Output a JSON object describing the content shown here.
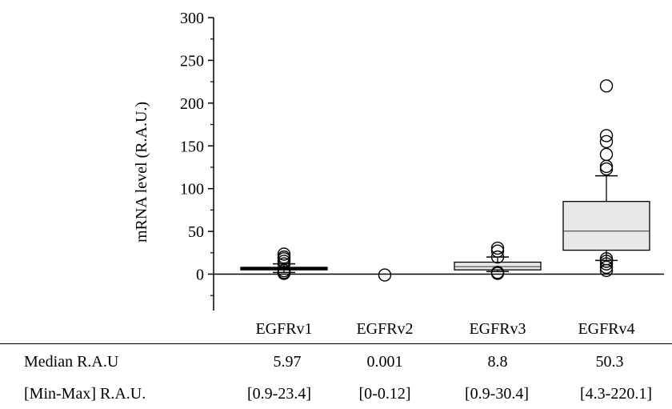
{
  "chart_data": {
    "type": "box",
    "ylabel": "mRNA level (R.A.U.)",
    "ylim": [
      -45,
      300
    ],
    "yticks": [
      0,
      50,
      100,
      150,
      200,
      250,
      300
    ],
    "categories": [
      "EGFRv1",
      "EGFRv2",
      "EGFRv3",
      "EGFRv4"
    ],
    "boxes": [
      {
        "name": "EGFRv1",
        "q1": 5,
        "median": 6,
        "q3": 8,
        "whisker_low": 2,
        "whisker_high": 12,
        "outliers": [
          0.9,
          2,
          4,
          12,
          15,
          18,
          20,
          23.4
        ],
        "fill": "#e8e8e8"
      },
      {
        "name": "EGFRv2",
        "q1": 0,
        "median": 0,
        "q3": 0,
        "whisker_low": 0,
        "whisker_high": 0,
        "outliers": [
          -1
        ],
        "fill": "#e8e8e8"
      },
      {
        "name": "EGFRv3",
        "q1": 5,
        "median": 8.8,
        "q3": 14,
        "whisker_low": 3,
        "whisker_high": 20,
        "outliers": [
          0.9,
          2,
          20,
          27,
          30.4
        ],
        "fill": "#e8e8e8"
      },
      {
        "name": "EGFRv4",
        "q1": 28,
        "median": 50.3,
        "q3": 85,
        "whisker_low": 16,
        "whisker_high": 115,
        "outliers": [
          4.3,
          8,
          12,
          15,
          18,
          123,
          126,
          140,
          155,
          162,
          220.1
        ],
        "fill": "#e8e8e8"
      }
    ]
  },
  "table": {
    "row1_label": "Median R.A.U",
    "row1_values": [
      "5.97",
      "0.001",
      "8.8",
      "50.3"
    ],
    "row2_label": "[Min-Max] R.A.U.",
    "row2_values": [
      "[0.9-23.4]",
      "[0-0.12]",
      "[0.9-30.4]",
      "[4.3-220.1]"
    ]
  }
}
